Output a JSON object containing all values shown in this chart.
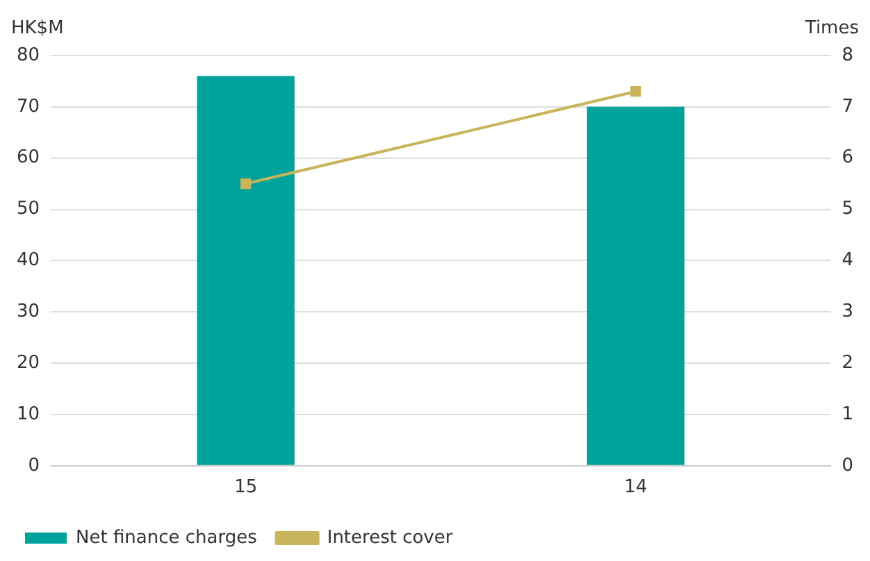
{
  "chart_data": {
    "type": "bar",
    "ylabel": "HK$M",
    "y2label": "Times",
    "categories": [
      "15",
      "14"
    ],
    "series": [
      {
        "name": "Net finance charges",
        "color": "#00a39b",
        "values": [
          76,
          70
        ]
      },
      {
        "name": "Interest cover",
        "type": "line",
        "axis": "y2",
        "color": "#c8b45a",
        "values": [
          5.5,
          7.3
        ]
      }
    ],
    "ylim": [
      0,
      80
    ],
    "yticks": [
      0,
      10,
      20,
      30,
      40,
      50,
      60,
      70,
      80
    ],
    "y2lim": [
      0,
      8
    ],
    "y2ticks": [
      0,
      1,
      2,
      3,
      4,
      5,
      6,
      7,
      8
    ],
    "grid": "y",
    "legend": "bottom left",
    "marker": "square",
    "line_style": "solid"
  }
}
